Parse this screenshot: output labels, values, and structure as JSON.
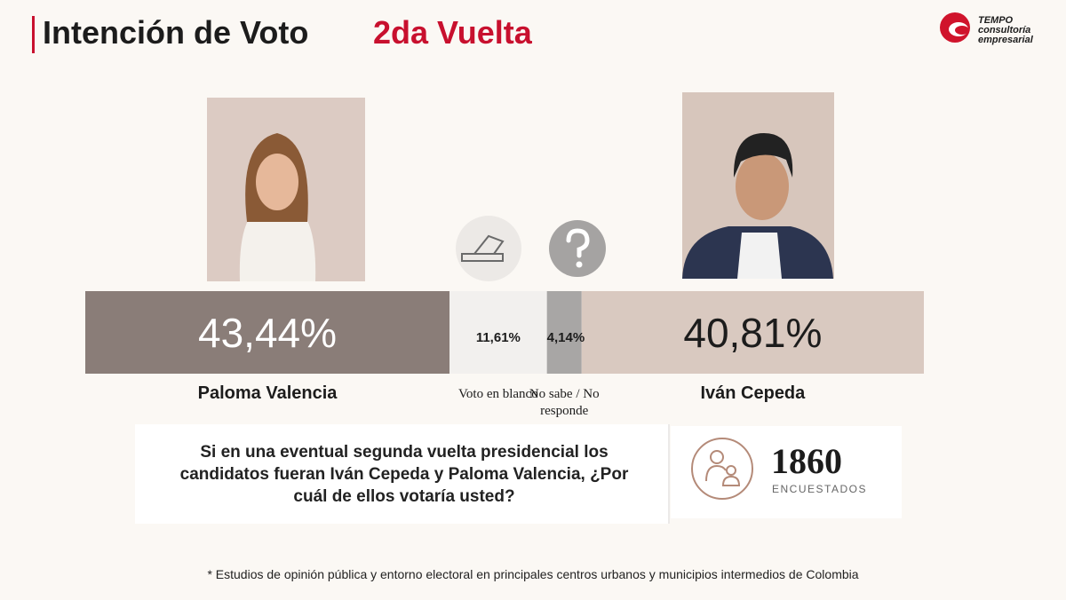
{
  "chart_data": {
    "type": "stacked-bar",
    "title": "Intención de Voto",
    "title_highlight": "2da Vuelta",
    "brand": {
      "name": "TEMPO",
      "tagline": "consultoría empresarial"
    },
    "xlim": [
      0,
      100
    ],
    "series": [
      {
        "name": "Paloma Valencia",
        "color": "#8a7d78",
        "values": [
          43.44
        ],
        "value_labels": [
          "43,44%"
        ]
      },
      {
        "name": "Voto en blanco",
        "color": "#f2f0ee",
        "values": [
          11.61
        ],
        "value_labels": [
          "11,61%"
        ]
      },
      {
        "name": "No sabe / No responde",
        "color": "#a8a6a5",
        "values": [
          4.14
        ],
        "value_labels": [
          "4,14%"
        ]
      },
      {
        "name": "Iván Cepeda",
        "color": "#d9c9c0",
        "values": [
          40.81
        ],
        "value_labels": [
          "40,81%"
        ]
      }
    ],
    "question": "Si en una eventual segunda vuelta presidencial los candidatos fueran Iván Cepeda y Paloma Valencia, ¿Por cuál de ellos votaría usted?",
    "respondents": {
      "value": 1860,
      "label": "ENCUESTADOS"
    },
    "footnote": "* Estudios de opinión pública y entorno electoral en principales centros urbanos y municipios intermedios de Colombia"
  }
}
